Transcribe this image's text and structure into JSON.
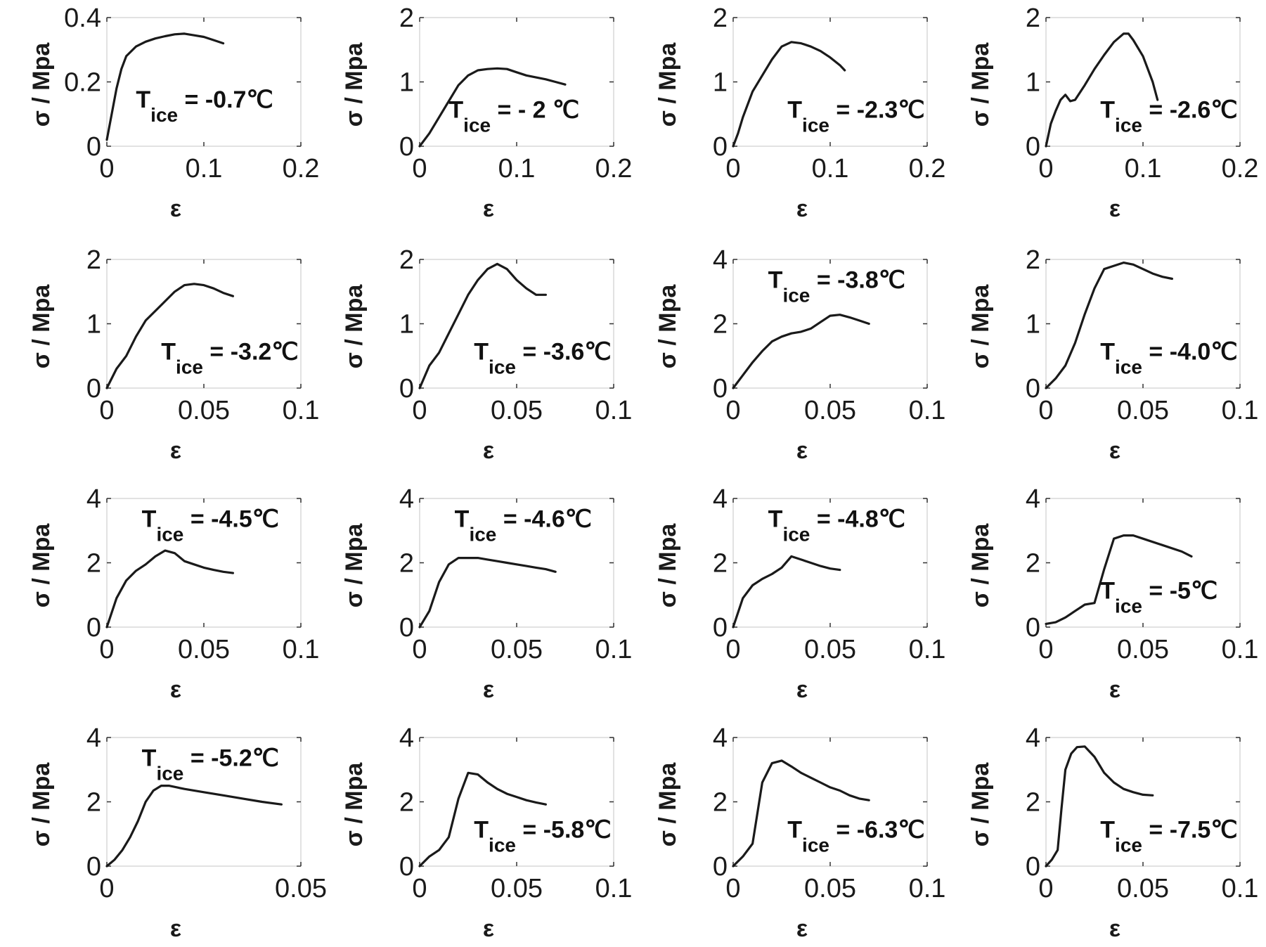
{
  "style": {
    "line_color": "#1a1a1a",
    "frame_color": "#d9d9d9",
    "text_color": "#1a1a1a"
  },
  "chart_data": [
    {
      "type": "line",
      "xlabel": "ε",
      "ylabel": "σ / Mpa",
      "xlim": [
        0,
        0.2
      ],
      "ylim": [
        0,
        0.4
      ],
      "xticks": [
        "0",
        "0.1",
        "0.2"
      ],
      "yticks": [
        "0",
        "0.2",
        "0.4"
      ],
      "annotation": {
        "main": "T",
        "sub": "ice",
        "value": " = -0.7℃"
      },
      "annotation_pos": "center-right",
      "series": [
        {
          "x": [
            0,
            0.005,
            0.01,
            0.015,
            0.02,
            0.03,
            0.04,
            0.05,
            0.06,
            0.07,
            0.08,
            0.09,
            0.1,
            0.11,
            0.12
          ],
          "y": [
            0.02,
            0.1,
            0.18,
            0.24,
            0.28,
            0.31,
            0.325,
            0.335,
            0.342,
            0.348,
            0.35,
            0.345,
            0.34,
            0.33,
            0.32
          ]
        }
      ]
    },
    {
      "type": "line",
      "xlabel": "ε",
      "ylabel": "σ / Mpa",
      "xlim": [
        0,
        0.2
      ],
      "ylim": [
        0,
        2
      ],
      "xticks": [
        "0",
        "0.1",
        "0.2"
      ],
      "yticks": [
        "0",
        "1",
        "2"
      ],
      "annotation": {
        "main": "T",
        "sub": "ice",
        "value": " = - 2 ℃"
      },
      "annotation_pos": "lower-center",
      "series": [
        {
          "x": [
            0,
            0.01,
            0.02,
            0.03,
            0.04,
            0.05,
            0.06,
            0.07,
            0.08,
            0.09,
            0.1,
            0.11,
            0.12,
            0.13,
            0.14,
            0.15
          ],
          "y": [
            0,
            0.2,
            0.45,
            0.7,
            0.95,
            1.1,
            1.18,
            1.2,
            1.21,
            1.2,
            1.15,
            1.1,
            1.07,
            1.04,
            1.0,
            0.96
          ]
        }
      ]
    },
    {
      "type": "line",
      "xlabel": "ε",
      "ylabel": "σ / Mpa",
      "xlim": [
        0,
        0.2
      ],
      "ylim": [
        0,
        2
      ],
      "xticks": [
        "0",
        "0.1",
        "0.2"
      ],
      "yticks": [
        "0",
        "1",
        "2"
      ],
      "annotation": {
        "main": "T",
        "sub": "ice",
        "value": " = -2.3℃"
      },
      "annotation_pos": "lower-right",
      "series": [
        {
          "x": [
            0,
            0.005,
            0.01,
            0.02,
            0.03,
            0.04,
            0.05,
            0.06,
            0.07,
            0.08,
            0.09,
            0.1,
            0.11,
            0.115
          ],
          "y": [
            0,
            0.2,
            0.45,
            0.85,
            1.1,
            1.35,
            1.55,
            1.62,
            1.6,
            1.55,
            1.48,
            1.38,
            1.26,
            1.18
          ]
        }
      ]
    },
    {
      "type": "line",
      "xlabel": "ε",
      "ylabel": "σ / Mpa",
      "xlim": [
        0,
        0.2
      ],
      "ylim": [
        0,
        2
      ],
      "xticks": [
        "0",
        "0.1",
        "0.2"
      ],
      "yticks": [
        "0",
        "1",
        "2"
      ],
      "annotation": {
        "main": "T",
        "sub": "ice",
        "value": " = -2.6℃"
      },
      "annotation_pos": "lower-right",
      "series": [
        {
          "x": [
            0,
            0.005,
            0.01,
            0.015,
            0.02,
            0.025,
            0.03,
            0.04,
            0.05,
            0.06,
            0.07,
            0.08,
            0.085,
            0.09,
            0.1,
            0.11,
            0.115
          ],
          "y": [
            0,
            0.35,
            0.55,
            0.72,
            0.8,
            0.7,
            0.72,
            0.95,
            1.2,
            1.42,
            1.62,
            1.75,
            1.75,
            1.65,
            1.4,
            1.0,
            0.72
          ]
        }
      ]
    },
    {
      "type": "line",
      "xlabel": "ε",
      "ylabel": "σ / Mpa",
      "xlim": [
        0,
        0.1
      ],
      "ylim": [
        0,
        2
      ],
      "xticks": [
        "0",
        "0.05",
        "0.1"
      ],
      "yticks": [
        "0",
        "1",
        "2"
      ],
      "annotation": {
        "main": "T",
        "sub": "ice",
        "value": " = -3.2℃"
      },
      "annotation_pos": "lower-right",
      "series": [
        {
          "x": [
            0,
            0.005,
            0.01,
            0.015,
            0.02,
            0.025,
            0.03,
            0.035,
            0.04,
            0.045,
            0.05,
            0.055,
            0.06,
            0.065
          ],
          "y": [
            0,
            0.3,
            0.5,
            0.8,
            1.05,
            1.2,
            1.35,
            1.5,
            1.6,
            1.62,
            1.6,
            1.55,
            1.48,
            1.43
          ]
        }
      ]
    },
    {
      "type": "line",
      "xlabel": "ε",
      "ylabel": "σ / Mpa",
      "xlim": [
        0,
        0.1
      ],
      "ylim": [
        0,
        2
      ],
      "xticks": [
        "0",
        "0.05",
        "0.1"
      ],
      "yticks": [
        "0",
        "1",
        "2"
      ],
      "annotation": {
        "main": "T",
        "sub": "ice",
        "value": " = -3.6℃"
      },
      "annotation_pos": "lower-right",
      "series": [
        {
          "x": [
            0,
            0.005,
            0.01,
            0.015,
            0.02,
            0.025,
            0.03,
            0.035,
            0.04,
            0.045,
            0.05,
            0.055,
            0.06,
            0.065
          ],
          "y": [
            0,
            0.35,
            0.55,
            0.85,
            1.15,
            1.45,
            1.68,
            1.85,
            1.93,
            1.85,
            1.68,
            1.55,
            1.45,
            1.45
          ]
        }
      ]
    },
    {
      "type": "line",
      "xlabel": "ε",
      "ylabel": "σ / Mpa",
      "xlim": [
        0,
        0.1
      ],
      "ylim": [
        0,
        4
      ],
      "xticks": [
        "0",
        "0.05",
        "0.1"
      ],
      "yticks": [
        "0",
        "2",
        "4"
      ],
      "annotation": {
        "main": "T",
        "sub": "ice",
        "value": " = -3.8℃"
      },
      "annotation_pos": "top-center",
      "series": [
        {
          "x": [
            0,
            0.005,
            0.01,
            0.015,
            0.02,
            0.025,
            0.03,
            0.035,
            0.04,
            0.045,
            0.05,
            0.055,
            0.06,
            0.065,
            0.07
          ],
          "y": [
            0,
            0.4,
            0.8,
            1.15,
            1.45,
            1.6,
            1.7,
            1.75,
            1.85,
            2.05,
            2.25,
            2.28,
            2.2,
            2.1,
            2.0
          ]
        }
      ]
    },
    {
      "type": "line",
      "xlabel": "ε",
      "ylabel": "σ / Mpa",
      "xlim": [
        0,
        0.1
      ],
      "ylim": [
        0,
        2
      ],
      "xticks": [
        "0",
        "0.05",
        "0.1"
      ],
      "yticks": [
        "0",
        "1",
        "2"
      ],
      "annotation": {
        "main": "T",
        "sub": "ice",
        "value": " = -4.0℃"
      },
      "annotation_pos": "lower-right",
      "series": [
        {
          "x": [
            0,
            0.005,
            0.01,
            0.015,
            0.02,
            0.025,
            0.03,
            0.035,
            0.04,
            0.045,
            0.05,
            0.055,
            0.06,
            0.065
          ],
          "y": [
            0,
            0.15,
            0.35,
            0.7,
            1.15,
            1.55,
            1.85,
            1.9,
            1.95,
            1.92,
            1.85,
            1.78,
            1.73,
            1.7
          ]
        }
      ]
    },
    {
      "type": "line",
      "xlabel": "ε",
      "ylabel": "σ / Mpa",
      "xlim": [
        0,
        0.1
      ],
      "ylim": [
        0,
        4
      ],
      "xticks": [
        "0",
        "0.05",
        "0.1"
      ],
      "yticks": [
        "0",
        "2",
        "4"
      ],
      "annotation": {
        "main": "T",
        "sub": "ice",
        "value": " = -4.5℃"
      },
      "annotation_pos": "top-center",
      "series": [
        {
          "x": [
            0,
            0.005,
            0.01,
            0.015,
            0.02,
            0.025,
            0.03,
            0.035,
            0.04,
            0.045,
            0.05,
            0.055,
            0.06,
            0.065
          ],
          "y": [
            0,
            0.9,
            1.45,
            1.75,
            1.95,
            2.2,
            2.38,
            2.3,
            2.05,
            1.95,
            1.85,
            1.78,
            1.72,
            1.68
          ]
        }
      ]
    },
    {
      "type": "line",
      "xlabel": "ε",
      "ylabel": "σ / Mpa",
      "xlim": [
        0,
        0.1
      ],
      "ylim": [
        0,
        4
      ],
      "xticks": [
        "0",
        "0.05",
        "0.1"
      ],
      "yticks": [
        "0",
        "2",
        "4"
      ],
      "annotation": {
        "main": "T",
        "sub": "ice",
        "value": " = -4.6℃"
      },
      "annotation_pos": "top-center",
      "series": [
        {
          "x": [
            0,
            0.005,
            0.01,
            0.015,
            0.02,
            0.025,
            0.03,
            0.035,
            0.04,
            0.045,
            0.05,
            0.055,
            0.06,
            0.065,
            0.07
          ],
          "y": [
            0,
            0.5,
            1.4,
            1.95,
            2.15,
            2.15,
            2.15,
            2.1,
            2.05,
            2.0,
            1.95,
            1.9,
            1.85,
            1.8,
            1.72
          ]
        }
      ]
    },
    {
      "type": "line",
      "xlabel": "ε",
      "ylabel": "σ / Mpa",
      "xlim": [
        0,
        0.1
      ],
      "ylim": [
        0,
        4
      ],
      "xticks": [
        "0",
        "0.05",
        "0.1"
      ],
      "yticks": [
        "0",
        "2",
        "4"
      ],
      "annotation": {
        "main": "T",
        "sub": "ice",
        "value": " = -4.8℃"
      },
      "annotation_pos": "top-center",
      "series": [
        {
          "x": [
            0,
            0.005,
            0.01,
            0.015,
            0.02,
            0.025,
            0.03,
            0.035,
            0.04,
            0.045,
            0.05,
            0.055
          ],
          "y": [
            0,
            0.9,
            1.3,
            1.5,
            1.65,
            1.85,
            2.2,
            2.1,
            2.0,
            1.9,
            1.82,
            1.78
          ]
        }
      ]
    },
    {
      "type": "line",
      "xlabel": "ε",
      "ylabel": "σ / Mpa",
      "xlim": [
        0,
        0.1
      ],
      "ylim": [
        0,
        4
      ],
      "xticks": [
        "0",
        "0.05",
        "0.1"
      ],
      "yticks": [
        "0",
        "2",
        "4"
      ],
      "annotation": {
        "main": "T",
        "sub": "ice",
        "value": " = -5℃"
      },
      "annotation_pos": "lower-right",
      "series": [
        {
          "x": [
            0,
            0.005,
            0.01,
            0.015,
            0.02,
            0.025,
            0.03,
            0.035,
            0.04,
            0.045,
            0.05,
            0.06,
            0.07,
            0.075
          ],
          "y": [
            0.1,
            0.15,
            0.3,
            0.5,
            0.7,
            0.75,
            1.8,
            2.75,
            2.85,
            2.85,
            2.75,
            2.55,
            2.35,
            2.2
          ]
        }
      ]
    },
    {
      "type": "line",
      "xlabel": "ε",
      "ylabel": "σ / Mpa",
      "xlim": [
        0,
        0.05
      ],
      "ylim": [
        0,
        4
      ],
      "xticks": [
        "0",
        "0.05"
      ],
      "yticks": [
        "0",
        "2",
        "4"
      ],
      "annotation": {
        "main": "T",
        "sub": "ice",
        "value": " = -5.2℃"
      },
      "annotation_pos": "top-center",
      "series": [
        {
          "x": [
            0,
            0.002,
            0.004,
            0.006,
            0.008,
            0.01,
            0.012,
            0.014,
            0.016,
            0.02,
            0.025,
            0.03,
            0.035,
            0.04,
            0.045
          ],
          "y": [
            0,
            0.2,
            0.5,
            0.9,
            1.4,
            2.0,
            2.35,
            2.5,
            2.5,
            2.4,
            2.3,
            2.2,
            2.1,
            2.0,
            1.92
          ]
        }
      ]
    },
    {
      "type": "line",
      "xlabel": "ε",
      "ylabel": "σ / Mpa",
      "xlim": [
        0,
        0.1
      ],
      "ylim": [
        0,
        4
      ],
      "xticks": [
        "0",
        "0.05",
        "0.1"
      ],
      "yticks": [
        "0",
        "2",
        "4"
      ],
      "annotation": {
        "main": "T",
        "sub": "ice",
        "value": " = -5.8℃"
      },
      "annotation_pos": "lower-right",
      "series": [
        {
          "x": [
            0,
            0.005,
            0.01,
            0.015,
            0.02,
            0.025,
            0.03,
            0.035,
            0.04,
            0.045,
            0.05,
            0.055,
            0.06,
            0.065
          ],
          "y": [
            0,
            0.3,
            0.5,
            0.9,
            2.1,
            2.9,
            2.85,
            2.6,
            2.4,
            2.25,
            2.15,
            2.05,
            1.98,
            1.92
          ]
        }
      ]
    },
    {
      "type": "line",
      "xlabel": "ε",
      "ylabel": "σ / Mpa",
      "xlim": [
        0,
        0.1
      ],
      "ylim": [
        0,
        4
      ],
      "xticks": [
        "0",
        "0.05",
        "0.1"
      ],
      "yticks": [
        "0",
        "2",
        "4"
      ],
      "annotation": {
        "main": "T",
        "sub": "ice",
        "value": " = -6.3℃"
      },
      "annotation_pos": "lower-right",
      "series": [
        {
          "x": [
            0,
            0.005,
            0.01,
            0.015,
            0.02,
            0.025,
            0.03,
            0.035,
            0.04,
            0.045,
            0.05,
            0.055,
            0.06,
            0.065,
            0.07
          ],
          "y": [
            0,
            0.3,
            0.7,
            2.6,
            3.2,
            3.28,
            3.1,
            2.9,
            2.75,
            2.6,
            2.45,
            2.35,
            2.2,
            2.1,
            2.05
          ]
        }
      ]
    },
    {
      "type": "line",
      "xlabel": "ε",
      "ylabel": "σ / Mpa",
      "xlim": [
        0,
        0.1
      ],
      "ylim": [
        0,
        4
      ],
      "xticks": [
        "0",
        "0.05",
        "0.1"
      ],
      "yticks": [
        "0",
        "2",
        "4"
      ],
      "annotation": {
        "main": "T",
        "sub": "ice",
        "value": " = -7.5℃"
      },
      "annotation_pos": "lower-right",
      "series": [
        {
          "x": [
            0,
            0.003,
            0.006,
            0.008,
            0.01,
            0.013,
            0.016,
            0.02,
            0.025,
            0.03,
            0.035,
            0.04,
            0.045,
            0.05,
            0.055
          ],
          "y": [
            0,
            0.2,
            0.5,
            1.8,
            3.0,
            3.5,
            3.7,
            3.72,
            3.4,
            2.9,
            2.6,
            2.4,
            2.3,
            2.22,
            2.2
          ]
        }
      ]
    }
  ]
}
